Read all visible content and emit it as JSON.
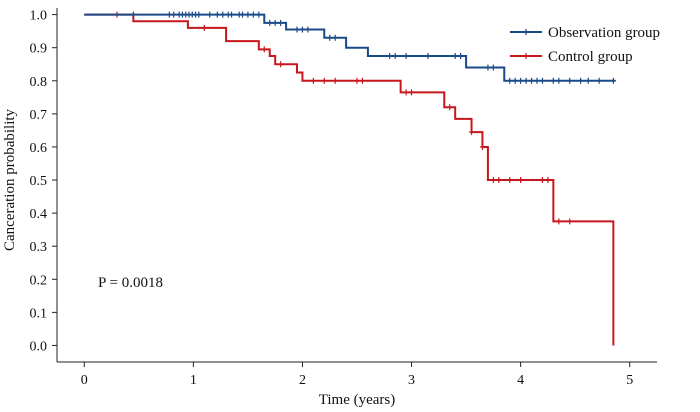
{
  "chart_data": {
    "type": "line",
    "title": "",
    "xlabel": "Time (years)",
    "ylabel": "Canceration probability",
    "xlim": [
      -0.25,
      5.25
    ],
    "ylim": [
      -0.05,
      1.02
    ],
    "xticks": [
      "0",
      "1",
      "2",
      "3",
      "4",
      "5"
    ],
    "yticks": [
      "0.0",
      "0.1",
      "0.2",
      "0.3",
      "0.4",
      "0.5",
      "0.6",
      "0.7",
      "0.8",
      "0.9",
      "1.0"
    ],
    "annotation": "P = 0.0018",
    "grid": false,
    "legend_position": "top-right",
    "series": [
      {
        "name": "Observation group",
        "color": "#1a4a8a",
        "steps": [
          [
            0,
            1.0
          ],
          [
            1.65,
            0.975
          ],
          [
            1.85,
            0.955
          ],
          [
            2.2,
            0.93
          ],
          [
            2.4,
            0.9
          ],
          [
            2.6,
            0.875
          ],
          [
            3.5,
            0.84
          ],
          [
            3.85,
            0.8
          ],
          [
            4.87,
            0.8
          ]
        ],
        "censor_times": [
          0.45,
          0.78,
          0.82,
          0.87,
          0.9,
          0.93,
          0.96,
          0.99,
          1.02,
          1.05,
          1.15,
          1.22,
          1.27,
          1.32,
          1.35,
          1.42,
          1.45,
          1.5,
          1.55,
          1.6,
          1.7,
          1.75,
          1.8,
          1.95,
          2.0,
          2.05,
          2.25,
          2.3,
          2.8,
          2.85,
          2.95,
          3.15,
          3.4,
          3.45,
          3.7,
          3.75,
          3.9,
          3.95,
          4.0,
          4.05,
          4.1,
          4.15,
          4.2,
          4.3,
          4.35,
          4.45,
          4.55,
          4.62,
          4.72,
          4.85
        ]
      },
      {
        "name": "Control group",
        "color": "#c8161d",
        "steps": [
          [
            0,
            1.0
          ],
          [
            0.45,
            0.98
          ],
          [
            0.95,
            0.96
          ],
          [
            1.3,
            0.92
          ],
          [
            1.6,
            0.895
          ],
          [
            1.7,
            0.875
          ],
          [
            1.75,
            0.85
          ],
          [
            1.95,
            0.825
          ],
          [
            2.0,
            0.8
          ],
          [
            2.9,
            0.765
          ],
          [
            3.3,
            0.72
          ],
          [
            3.4,
            0.685
          ],
          [
            3.55,
            0.645
          ],
          [
            3.65,
            0.6
          ],
          [
            3.7,
            0.5
          ],
          [
            4.3,
            0.375
          ],
          [
            4.85,
            0.0
          ]
        ],
        "censor_times": [
          0.3,
          1.1,
          1.65,
          1.8,
          2.1,
          2.2,
          2.3,
          2.5,
          2.55,
          2.95,
          3.0,
          3.35,
          3.55,
          3.65,
          3.75,
          3.8,
          3.9,
          4.0,
          4.2,
          4.25,
          4.35,
          4.45
        ]
      }
    ]
  }
}
